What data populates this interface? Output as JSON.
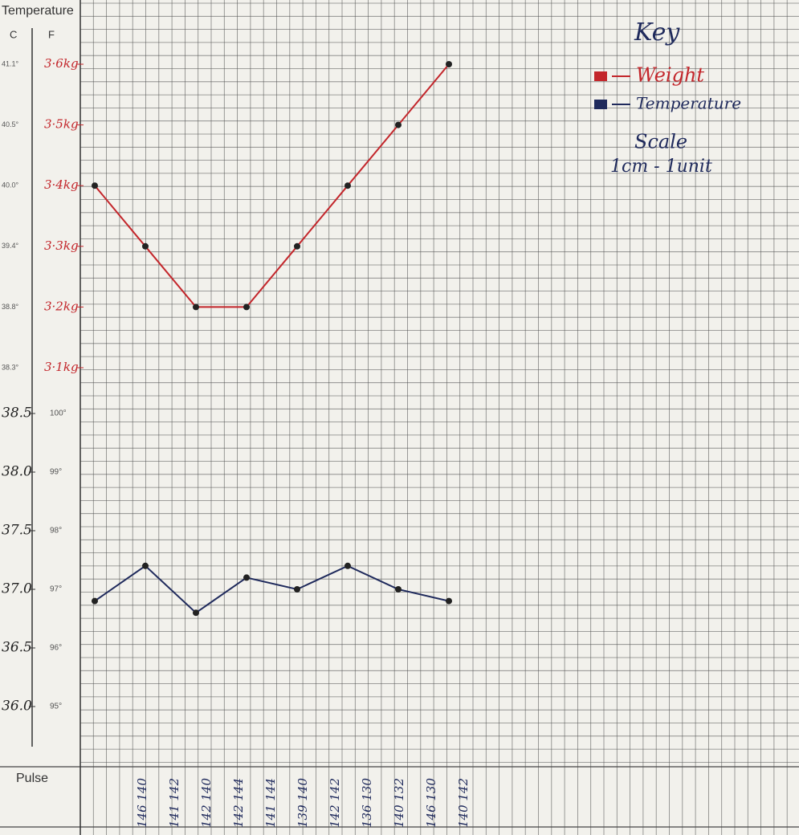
{
  "chart_data": {
    "type": "line",
    "categories": [
      null,
      null,
      null,
      null,
      null,
      null,
      null,
      null
    ],
    "series": [
      {
        "name": "Weight",
        "color": "#c3262b",
        "axis": "y",
        "values": [
          3.4,
          3.3,
          3.2,
          3.2,
          3.3,
          3.4,
          3.5,
          3.6
        ]
      },
      {
        "name": "Temperature",
        "color": "#1f2a5c",
        "axis": "y2",
        "values": [
          36.9,
          37.2,
          36.8,
          37.1,
          37.0,
          37.2,
          37.0,
          36.9
        ]
      }
    ],
    "ylim": [
      3.1,
      3.6
    ],
    "yticks": [
      {
        "value": 3.6,
        "label": "3·6kg"
      },
      {
        "value": 3.5,
        "label": "3·5kg"
      },
      {
        "value": 3.4,
        "label": "3·4kg"
      },
      {
        "value": 3.3,
        "label": "3·3kg"
      },
      {
        "value": 3.2,
        "label": "3·2kg"
      },
      {
        "value": 3.1,
        "label": "3·1kg"
      }
    ],
    "y2lim": [
      36.0,
      38.5
    ],
    "y2ticks": [
      38.5,
      {
        "value": 38,
        "label": "38.0"
      },
      37.5,
      {
        "value": 37,
        "label": "37.0"
      },
      36.5,
      {
        "value": 36,
        "label": "36.0"
      }
    ],
    "legend": "top-right"
  },
  "sheet": {
    "header": "Temperature",
    "c_label": "C",
    "f_label": "F",
    "c_printed": [
      "41.1°",
      "40.5°",
      "40.0°",
      "39.4°",
      "38.8°",
      "38.3°"
    ],
    "f_printed": [
      "100°",
      "99°",
      "98°",
      "97°",
      "96°",
      "95°"
    ],
    "pulse_label": "Pulse",
    "pulse": [
      "146 140",
      "141 142",
      "142 140",
      "142 144",
      "141 144",
      "139 140",
      "142 142",
      "136 130",
      "140 132",
      "146 130",
      "140 142"
    ]
  },
  "key": {
    "title": "Key",
    "scale_title": "Scale",
    "scale": "1cm - 1unit"
  }
}
